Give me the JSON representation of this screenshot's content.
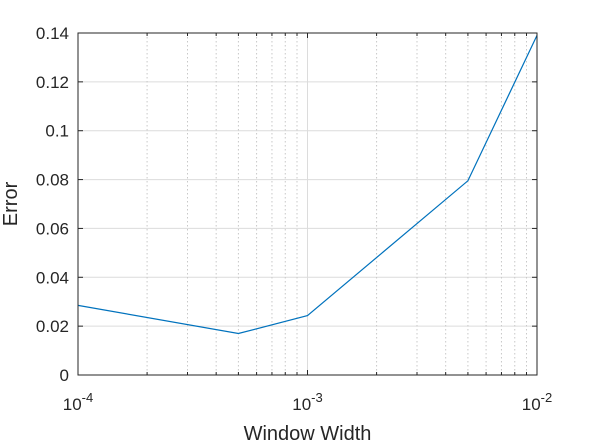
{
  "chart_data": {
    "type": "line",
    "title": "",
    "xlabel": "Window Width",
    "ylabel": "Error",
    "x_scale": "log",
    "xlim": [
      0.0001,
      0.01
    ],
    "ylim": [
      0,
      0.14
    ],
    "grid": true,
    "legend": "none",
    "x_ticks": [
      {
        "value": 0.0001,
        "base": "10",
        "exp": "-4"
      },
      {
        "value": 0.001,
        "base": "10",
        "exp": "-3"
      },
      {
        "value": 0.01,
        "base": "10",
        "exp": "-2"
      }
    ],
    "y_ticks": [
      {
        "value": 0,
        "label": "0"
      },
      {
        "value": 0.02,
        "label": "0.02"
      },
      {
        "value": 0.04,
        "label": "0.04"
      },
      {
        "value": 0.06,
        "label": "0.06"
      },
      {
        "value": 0.08,
        "label": "0.08"
      },
      {
        "value": 0.1,
        "label": "0.1"
      },
      {
        "value": 0.12,
        "label": "0.12"
      },
      {
        "value": 0.14,
        "label": "0.14"
      }
    ],
    "series": [
      {
        "color": "#0072bd",
        "x": [
          0.0001,
          0.0005,
          0.001,
          0.005,
          0.01
        ],
        "y": [
          0.0285,
          0.017,
          0.0243,
          0.0795,
          0.139
        ]
      }
    ]
  }
}
